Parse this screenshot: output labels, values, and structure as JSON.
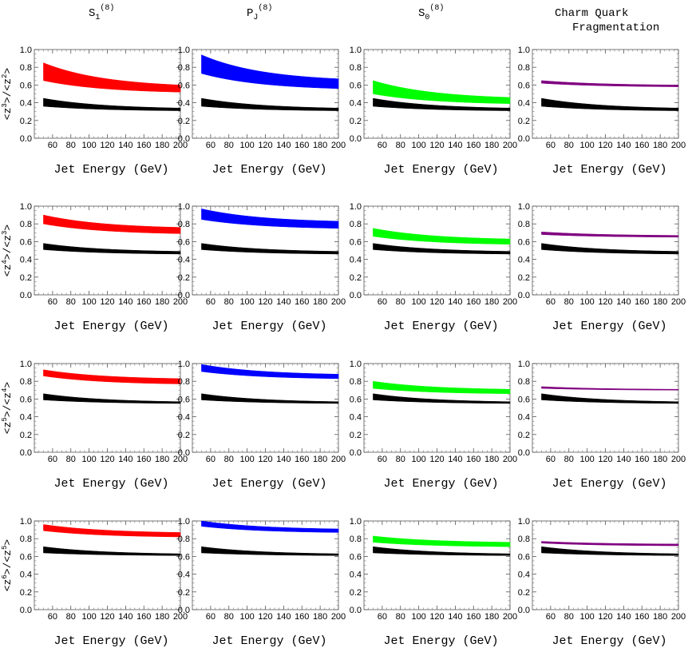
{
  "figure": {
    "column_titles": [
      {
        "base": "S",
        "sub": "1",
        "sup": "(8)"
      },
      {
        "base": "P",
        "sub": "J",
        "sup": "(8)"
      },
      {
        "base": "S",
        "sub": "0",
        "sup": "(8)"
      },
      {
        "lines": [
          "Charm Quark",
          "Fragmentation"
        ]
      }
    ],
    "row_ylabels": [
      {
        "num_exp": "3",
        "den_exp": "2"
      },
      {
        "num_exp": "4",
        "den_exp": "3"
      },
      {
        "num_exp": "5",
        "den_exp": "4"
      },
      {
        "num_exp": "6",
        "den_exp": "5"
      }
    ],
    "xlabel": "Jet Energy (GeV)"
  },
  "chart_data": {
    "type": "area",
    "layout": "4x4 grid of bands vs. jet energy",
    "x": [
      50,
      200
    ],
    "xlim": [
      40,
      200
    ],
    "ylim": [
      0,
      1.0
    ],
    "xticks": [
      "60",
      "80",
      "100",
      "120",
      "140",
      "160",
      "180",
      "200"
    ],
    "yticks": [
      "0.0",
      "0.2",
      "0.4",
      "0.6",
      "0.8",
      "1.0"
    ],
    "colors": {
      "S1": "#ff0000",
      "PJ": "#0000ff",
      "S0": "#00ff00",
      "charm": "#800080",
      "reference": "#000000"
    },
    "rows": [
      {
        "reference_band": {
          "lower": [
            0.36,
            0.31
          ],
          "upper": [
            0.45,
            0.34
          ]
        },
        "bands": [
          {
            "color_key": "S1",
            "lower": [
              0.65,
              0.52
            ],
            "upper": [
              0.85,
              0.6
            ]
          },
          {
            "color_key": "PJ",
            "lower": [
              0.73,
              0.56
            ],
            "upper": [
              0.94,
              0.67
            ]
          },
          {
            "color_key": "S0",
            "lower": [
              0.5,
              0.39
            ],
            "upper": [
              0.65,
              0.46
            ]
          },
          {
            "color_key": "charm",
            "lower": [
              0.62,
              0.58
            ],
            "upper": [
              0.65,
              0.6
            ]
          }
        ]
      },
      {
        "reference_band": {
          "lower": [
            0.51,
            0.46
          ],
          "upper": [
            0.58,
            0.49
          ]
        },
        "bands": [
          {
            "color_key": "S1",
            "lower": [
              0.8,
              0.69
            ],
            "upper": [
              0.9,
              0.76
            ]
          },
          {
            "color_key": "PJ",
            "lower": [
              0.85,
              0.75
            ],
            "upper": [
              0.97,
              0.83
            ]
          },
          {
            "color_key": "S0",
            "lower": [
              0.66,
              0.57
            ],
            "upper": [
              0.75,
              0.63
            ]
          },
          {
            "color_key": "charm",
            "lower": [
              0.68,
              0.65
            ],
            "upper": [
              0.71,
              0.67
            ]
          }
        ]
      },
      {
        "reference_band": {
          "lower": [
            0.59,
            0.55
          ],
          "upper": [
            0.66,
            0.57
          ]
        },
        "bands": [
          {
            "color_key": "S1",
            "lower": [
              0.86,
              0.77
            ],
            "upper": [
              0.93,
              0.83
            ]
          },
          {
            "color_key": "PJ",
            "lower": [
              0.91,
              0.83
            ],
            "upper": [
              0.99,
              0.88
            ]
          },
          {
            "color_key": "S0",
            "lower": [
              0.72,
              0.66
            ],
            "upper": [
              0.8,
              0.71
            ]
          },
          {
            "color_key": "charm",
            "lower": [
              0.72,
              0.7
            ],
            "upper": [
              0.74,
              0.71
            ]
          }
        ]
      },
      {
        "reference_band": {
          "lower": [
            0.64,
            0.61
          ],
          "upper": [
            0.71,
            0.63
          ]
        },
        "bands": [
          {
            "color_key": "S1",
            "lower": [
              0.89,
              0.82
            ],
            "upper": [
              0.96,
              0.87
            ]
          },
          {
            "color_key": "PJ",
            "lower": [
              0.94,
              0.87
            ],
            "upper": [
              1.0,
              0.91
            ]
          },
          {
            "color_key": "S0",
            "lower": [
              0.76,
              0.71
            ],
            "upper": [
              0.83,
              0.76
            ]
          },
          {
            "color_key": "charm",
            "lower": [
              0.75,
              0.72
            ],
            "upper": [
              0.77,
              0.74
            ]
          }
        ]
      }
    ]
  }
}
